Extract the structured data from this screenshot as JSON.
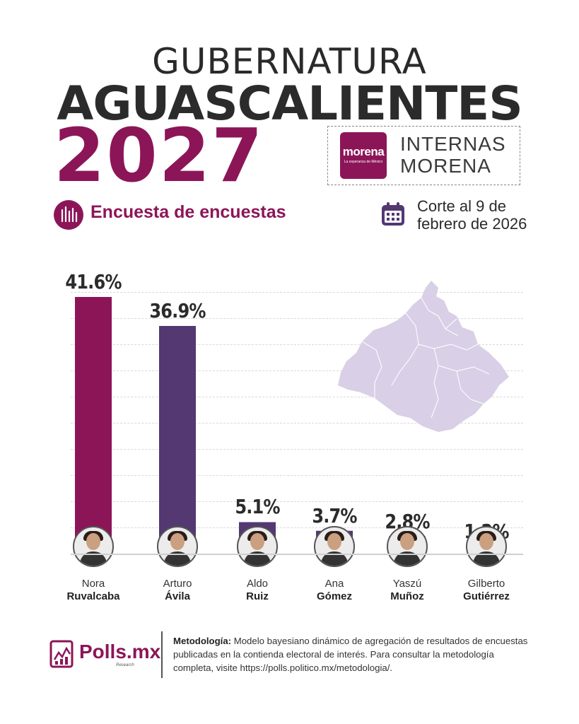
{
  "header": {
    "title_line1": "GUBERNATURA",
    "title_line2": "AGUASCALIENTES",
    "title_year": "2027",
    "party_logo_text": "morena",
    "party_logo_sub": "La esperanza de México",
    "internas_line1": "INTERNAS",
    "internas_line2": "MORENA",
    "encuesta_label": "Encuesta de encuestas",
    "corte_line1": "Corte al 9 de",
    "corte_line2": "febrero de 2026"
  },
  "colors": {
    "magenta": "#8c1558",
    "purple": "#533872",
    "map": "#d9cfe6"
  },
  "chart_data": {
    "type": "bar",
    "title": "",
    "xlabel": "",
    "ylabel": "",
    "ylim": [
      0,
      45
    ],
    "grid": true,
    "categories": [
      "Nora Ruvalcaba",
      "Arturo Ávila",
      "Aldo Ruiz",
      "Ana Gómez",
      "Yaszú Muñoz",
      "Gilberto Gutiérrez"
    ],
    "values": [
      41.6,
      36.9,
      5.1,
      3.7,
      2.8,
      1.2
    ],
    "value_labels": [
      "41.6%",
      "36.9%",
      "5.1%",
      "3.7%",
      "2.8%",
      "1.2%"
    ],
    "bar_colors": [
      "#8c1558",
      "#533872",
      "#533872",
      "#533872",
      "#533872",
      "#533872"
    ],
    "candidates": [
      {
        "first": "Nora",
        "last": "Ruvalcaba"
      },
      {
        "first": "Arturo",
        "last": "Ávila"
      },
      {
        "first": "Aldo",
        "last": "Ruiz"
      },
      {
        "first": "Ana",
        "last": "Gómez"
      },
      {
        "first": "Yaszú",
        "last": "Muñoz"
      },
      {
        "first": "Gilberto",
        "last": "Gutiérrez"
      }
    ]
  },
  "footer": {
    "brand": "Polls.mx",
    "brand_sub": "Research",
    "method_label": "Metodología:",
    "method_text": " Modelo bayesiano dinámico de agregación de resultados de encuestas publicadas en la contienda electoral de interés. Para consultar la metodología completa, visite https://polls.politico.mx/metodologia/."
  }
}
